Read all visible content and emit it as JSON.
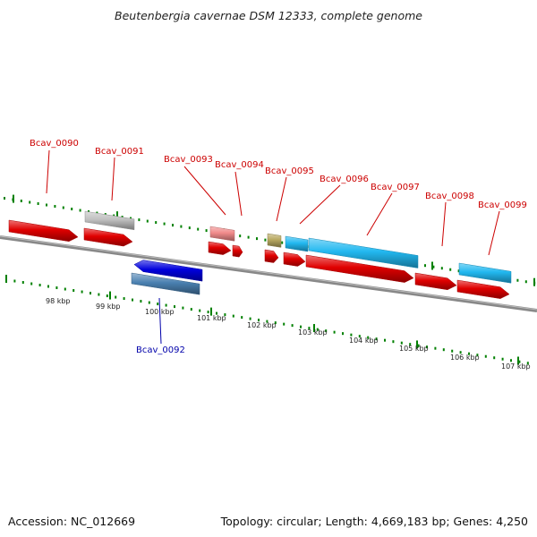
{
  "title": "Beutenbergia cavernae DSM 12333, complete genome",
  "footer": {
    "accession": "Accession: NC_012669",
    "topology": "Topology: circular; Length: 4,669,183 bp; Genes: 4,250"
  },
  "colors": {
    "forward_gene": "#e00000",
    "reverse_gene": "#0000dd",
    "pseudo_gene": "#c0c0c0",
    "rna_gene": "#f08a8a",
    "other_gene": "#b8a860",
    "blue_gene": "#22b8f0",
    "steel_gene": "#4a80b0",
    "label_forward": "#cc0000",
    "label_reverse": "#0000aa",
    "tick": "#008000",
    "backbone": "#888888"
  },
  "ticks": [
    "98 kbp",
    "99 kbp",
    "100 kbp",
    "101 kbp",
    "102 kbp",
    "103 kbp",
    "104 kbp",
    "105 kbp",
    "106 kbp",
    "107 kbp"
  ],
  "gene_labels": [
    {
      "name": "Bcav_0090",
      "strand": "forward"
    },
    {
      "name": "Bcav_0091",
      "strand": "forward"
    },
    {
      "name": "Bcav_0092",
      "strand": "reverse"
    },
    {
      "name": "Bcav_0093",
      "strand": "forward"
    },
    {
      "name": "Bcav_0094",
      "strand": "forward"
    },
    {
      "name": "Bcav_0095",
      "strand": "forward"
    },
    {
      "name": "Bcav_0096",
      "strand": "forward"
    },
    {
      "name": "Bcav_0097",
      "strand": "forward"
    },
    {
      "name": "Bcav_0098",
      "strand": "forward"
    },
    {
      "name": "Bcav_0099",
      "strand": "forward"
    }
  ]
}
